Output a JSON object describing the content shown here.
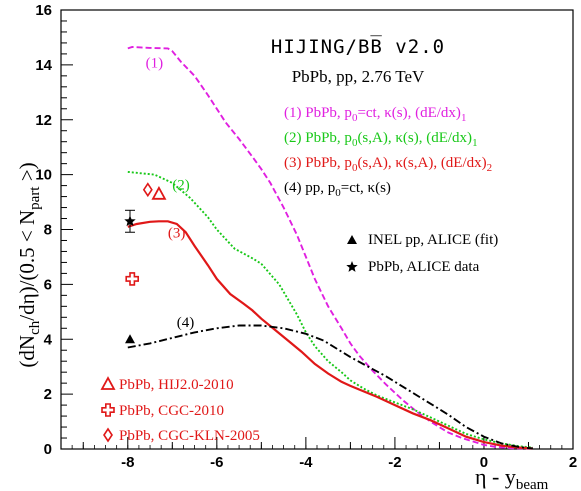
{
  "chart_data": {
    "type": "line",
    "title": "HIJING/BB̅ v2.0",
    "subtitle": "PbPb, pp, 2.76 TeV",
    "xlabel": "η - y",
    "xlabel_sub": "beam",
    "ylabel_parts": [
      "(dN",
      "ch",
      "/dη)/(0.5 < N",
      "part",
      " >)"
    ],
    "xlim": [
      -9.5,
      2
    ],
    "ylim": [
      0,
      16
    ],
    "x_ticks": [
      "-8",
      "-6",
      "-4",
      "-2",
      "0",
      "2"
    ],
    "y_ticks": [
      "0",
      "2",
      "4",
      "6",
      "8",
      "10",
      "12",
      "14",
      "16"
    ],
    "legend_labels": [
      {
        "parts": [
          "(1) PbPb, p",
          "0",
          "=ct, κ(s), (dE/dx)",
          "1"
        ],
        "color": "#e020e0"
      },
      {
        "parts": [
          "(2) PbPb, p",
          "0",
          "(s,A), κ(s), (dE/dx)",
          "1"
        ],
        "color": "#18c818"
      },
      {
        "parts": [
          "(3) PbPb, p",
          "0",
          "(s,A), κ(s,A), (dE/dx)",
          "2"
        ],
        "color": "#e01818"
      },
      {
        "parts": [
          "(4) pp, p",
          "0",
          "=ct, κ(s)",
          ""
        ],
        "color": "#000000"
      }
    ],
    "curve_labels": [
      "(1)",
      "(2)",
      "(3)",
      "(4)"
    ],
    "marker_legend": [
      "INEL pp, ALICE (fit)",
      "PbPb, ALICE data"
    ],
    "bottom_legend": [
      "PbPb, HIJ2.0-2010",
      "PbPb, CGC-2010",
      "PbPb, CGC-KLN-2005"
    ],
    "series": [
      {
        "name": "(1)",
        "color": "#e020e0",
        "style": "dashed",
        "x": [
          -8.0,
          -7.9,
          -7.5,
          -7.1,
          -7.0,
          -6.8,
          -6.5,
          -6.2,
          -6.0,
          -5.8,
          -5.5,
          -5.2,
          -5.0,
          -4.8,
          -4.5,
          -4.2,
          -4.0,
          -3.8,
          -3.5,
          -3.2,
          -3.0,
          -2.8,
          -2.5,
          -2.2,
          -2.0,
          -1.8,
          -1.5,
          -1.2,
          -1.0,
          -0.8,
          -0.5,
          -0.2,
          0.0,
          0.3,
          0.6,
          0.9,
          1.1
        ],
        "y": [
          14.6,
          14.65,
          14.62,
          14.6,
          14.5,
          14.1,
          13.6,
          12.9,
          12.4,
          11.9,
          11.3,
          10.65,
          10.2,
          9.7,
          8.8,
          7.8,
          7.0,
          6.2,
          5.2,
          4.4,
          3.85,
          3.4,
          2.85,
          2.35,
          2.05,
          1.75,
          1.35,
          1.0,
          0.8,
          0.6,
          0.4,
          0.25,
          0.15,
          0.07,
          0.03,
          0.02,
          0.01
        ]
      },
      {
        "name": "(2)",
        "color": "#18c818",
        "style": "dotted",
        "x": [
          -8.0,
          -7.7,
          -7.4,
          -7.0,
          -6.6,
          -6.2,
          -6.0,
          -5.6,
          -5.2,
          -5.0,
          -4.6,
          -4.2,
          -4.0,
          -3.8,
          -3.5,
          -3.2,
          -3.0,
          -2.7,
          -2.4,
          -2.0,
          -1.6,
          -1.2,
          -0.8,
          -0.4,
          0.0,
          0.4,
          0.8,
          1.1
        ],
        "y": [
          10.1,
          10.05,
          10.0,
          9.7,
          9.15,
          8.45,
          8.0,
          7.3,
          6.95,
          6.75,
          6.0,
          4.9,
          4.25,
          3.75,
          3.2,
          2.8,
          2.5,
          2.2,
          1.95,
          1.7,
          1.45,
          1.15,
          0.85,
          0.55,
          0.35,
          0.2,
          0.1,
          0.05
        ]
      },
      {
        "name": "(3)",
        "color": "#e01818",
        "style": "solid",
        "x": [
          -8.0,
          -7.8,
          -7.5,
          -7.3,
          -7.1,
          -6.9,
          -6.7,
          -6.5,
          -6.2,
          -6.0,
          -5.7,
          -5.4,
          -5.2,
          -5.0,
          -4.7,
          -4.4,
          -4.1,
          -3.8,
          -3.5,
          -3.2,
          -3.0,
          -2.7,
          -2.4,
          -2.0,
          -1.6,
          -1.2,
          -0.8,
          -0.4,
          0.0,
          0.4,
          0.8,
          1.1
        ],
        "y": [
          8.1,
          8.2,
          8.28,
          8.3,
          8.3,
          8.2,
          7.9,
          7.4,
          6.7,
          6.2,
          5.65,
          5.3,
          5.05,
          4.75,
          4.35,
          3.95,
          3.55,
          3.1,
          2.75,
          2.45,
          2.3,
          2.1,
          1.9,
          1.6,
          1.3,
          1.05,
          0.75,
          0.45,
          0.25,
          0.12,
          0.05,
          0.02
        ]
      },
      {
        "name": "(4)",
        "color": "#000000",
        "style": "dashdot",
        "x": [
          -8.0,
          -7.5,
          -7.0,
          -6.5,
          -6.0,
          -5.5,
          -5.0,
          -4.5,
          -4.0,
          -3.6,
          -3.2,
          -3.0,
          -2.6,
          -2.2,
          -2.0,
          -1.6,
          -1.2,
          -0.8,
          -0.4,
          0.0,
          0.4,
          0.8,
          1.1
        ],
        "y": [
          3.7,
          3.85,
          4.05,
          4.25,
          4.4,
          4.5,
          4.5,
          4.4,
          4.2,
          3.95,
          3.55,
          3.35,
          3.0,
          2.65,
          2.45,
          2.05,
          1.65,
          1.25,
          0.8,
          0.45,
          0.2,
          0.07,
          0.02
        ]
      }
    ],
    "points": [
      {
        "name": "PbPb, ALICE data",
        "marker": "star",
        "color": "#000000",
        "x": -7.95,
        "y": 8.3,
        "yerr": 0.4
      },
      {
        "name": "INEL pp, ALICE (fit)",
        "marker": "triangle",
        "color": "#000000",
        "x": -7.95,
        "y": 4.0
      },
      {
        "name": "PbPb, HIJ2.0-2010",
        "marker": "triangle-open",
        "color": "#e01818",
        "x": -7.3,
        "y": 9.3
      },
      {
        "name": "PbPb, CGC-2010",
        "marker": "cross-open",
        "color": "#e01818",
        "x": -7.9,
        "y": 6.2
      },
      {
        "name": "PbPb, CGC-KLN-2005",
        "marker": "diamond-open",
        "color": "#e01818",
        "x": -7.55,
        "y": 9.45
      }
    ]
  }
}
